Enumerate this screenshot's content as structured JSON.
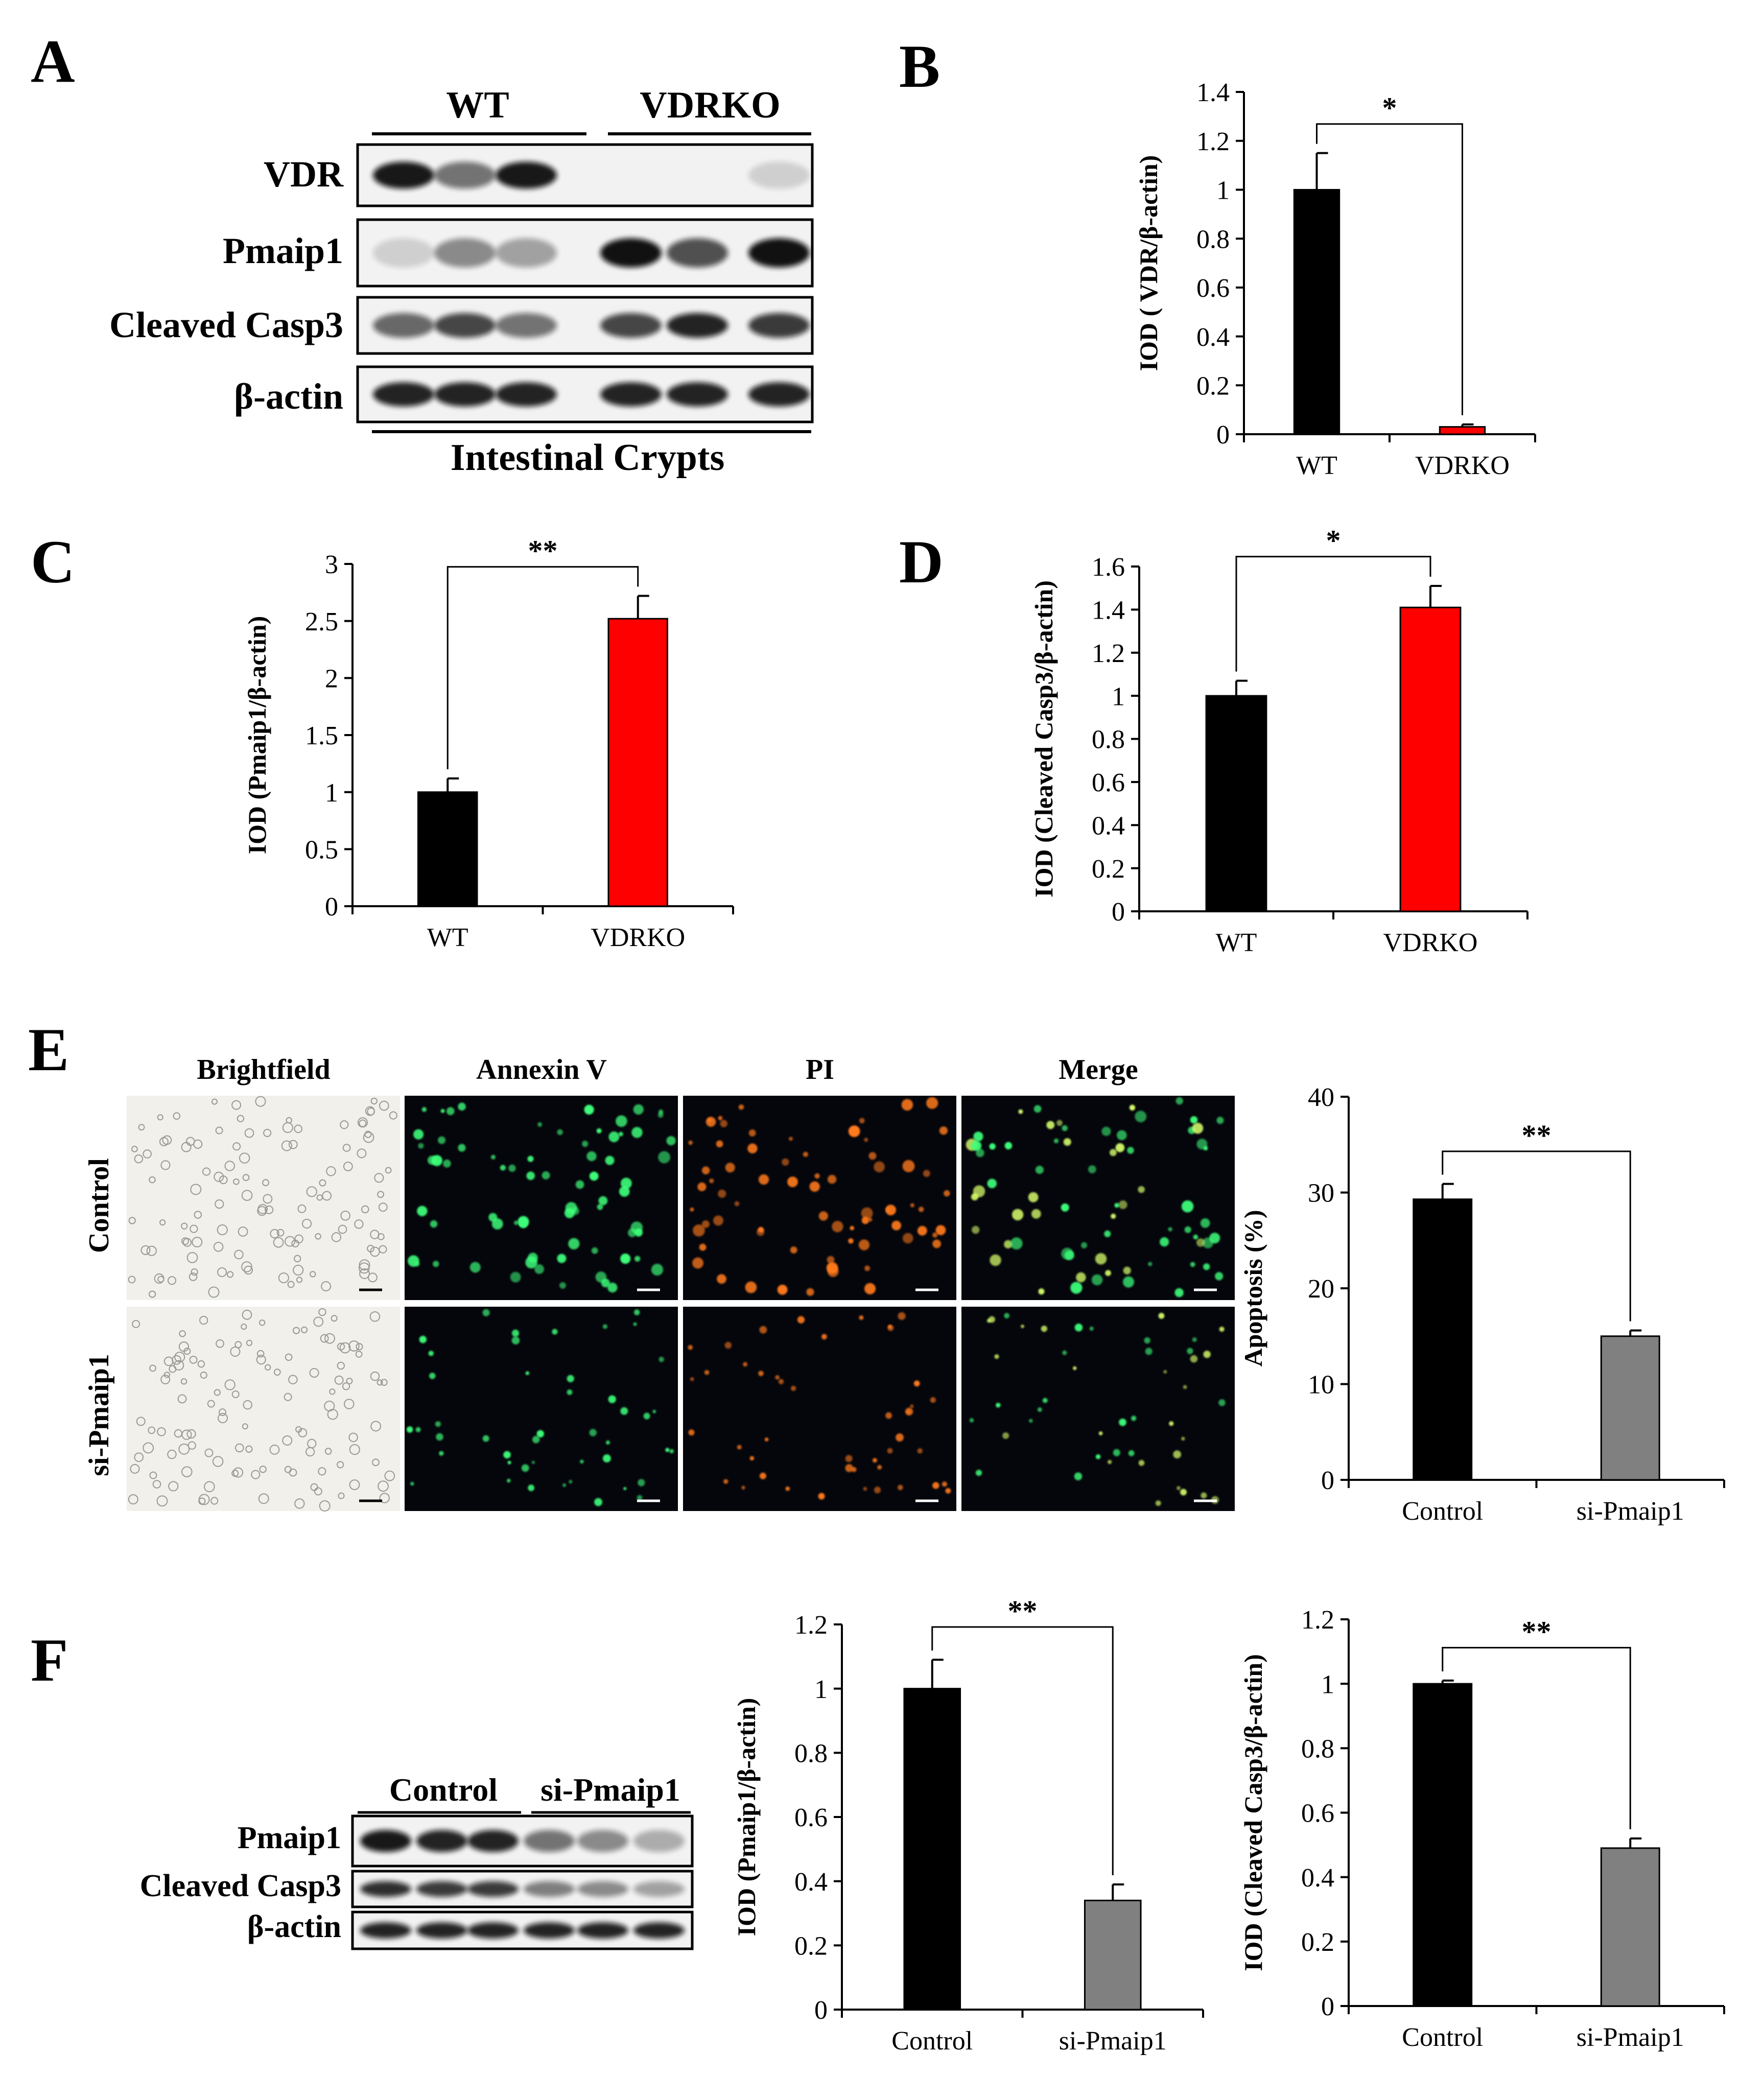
{
  "panels": {
    "A": {
      "letter": "A",
      "groups": [
        "WT",
        "VDRKO"
      ],
      "rows": [
        "VDR",
        "Pmaip1",
        "Cleaved Casp3",
        "β-actin"
      ],
      "footer": "Intestinal Crypts"
    },
    "E": {
      "letter": "E",
      "columns": [
        "Brightfield",
        "Annexin V",
        "PI",
        "Merge"
      ],
      "rows": [
        "Control",
        "si-Pmaip1"
      ]
    },
    "F": {
      "letter": "F",
      "groups": [
        "Control",
        "si-Pmaip1"
      ],
      "rows": [
        "Pmaip1",
        "Cleaved Casp3",
        "β-actin"
      ]
    }
  },
  "colors": {
    "wt": "#000000",
    "ko": "#ff0000",
    "si": "#808080",
    "annexin": "#3cff7a",
    "pi": "#ff7a1a"
  },
  "chart_data": [
    {
      "id": "B",
      "letter": "B",
      "type": "bar",
      "categories": [
        "WT",
        "VDRKO"
      ],
      "values": [
        1.0,
        0.03
      ],
      "errors": [
        0.15,
        0.01
      ],
      "colors": [
        "#000000",
        "#ff0000"
      ],
      "ylabel": "IOD ( VDR/β-actin)",
      "ylim": [
        0,
        1.4
      ],
      "ystep": 0.2,
      "yticks": [
        "0",
        "0.2",
        "0.4",
        "0.6",
        "0.8",
        "1",
        "1.2",
        "1.4"
      ],
      "significance": "*"
    },
    {
      "id": "C",
      "letter": "C",
      "type": "bar",
      "categories": [
        "WT",
        "VDRKO"
      ],
      "values": [
        1.0,
        2.52
      ],
      "errors": [
        0.12,
        0.2
      ],
      "colors": [
        "#000000",
        "#ff0000"
      ],
      "ylabel": "IOD (Pmaip1/β-actin)",
      "ylim": [
        0,
        3
      ],
      "ystep": 0.5,
      "yticks": [
        "0",
        "0.5",
        "1",
        "1.5",
        "2",
        "2.5",
        "3"
      ],
      "significance": "**"
    },
    {
      "id": "D",
      "letter": "D",
      "type": "bar",
      "categories": [
        "WT",
        "VDRKO"
      ],
      "values": [
        1.0,
        1.41
      ],
      "errors": [
        0.07,
        0.1
      ],
      "colors": [
        "#000000",
        "#ff0000"
      ],
      "ylabel": "IOD (Cleaved Casp3/β-actin)",
      "ylim": [
        0,
        1.6
      ],
      "ystep": 0.2,
      "yticks": [
        "0",
        "0.2",
        "0.4",
        "0.6",
        "0.8",
        "1",
        "1.2",
        "1.4",
        "1.6"
      ],
      "significance": "*"
    },
    {
      "id": "E",
      "type": "bar",
      "categories": [
        "Control",
        "si-Pmaip1"
      ],
      "values": [
        29.3,
        15.0
      ],
      "errors": [
        1.6,
        0.6
      ],
      "colors": [
        "#000000",
        "#808080"
      ],
      "ylabel": "Apoptosis (%)",
      "ylim": [
        0,
        40
      ],
      "ystep": 10,
      "yticks": [
        "0",
        "10",
        "20",
        "30",
        "40"
      ],
      "significance": "**"
    },
    {
      "id": "F1",
      "type": "bar",
      "categories": [
        "Control",
        "si-Pmaip1"
      ],
      "values": [
        1.0,
        0.34
      ],
      "errors": [
        0.09,
        0.05
      ],
      "colors": [
        "#000000",
        "#808080"
      ],
      "ylabel": "IOD (Pmaip1/β-actin)",
      "ylim": [
        0,
        1.2
      ],
      "ystep": 0.2,
      "yticks": [
        "0",
        "0.2",
        "0.4",
        "0.6",
        "0.8",
        "1",
        "1.2"
      ],
      "significance": "**"
    },
    {
      "id": "F2",
      "type": "bar",
      "categories": [
        "Control",
        "si-Pmaip1"
      ],
      "values": [
        1.0,
        0.49
      ],
      "errors": [
        0.01,
        0.03
      ],
      "colors": [
        "#000000",
        "#808080"
      ],
      "ylabel": "IOD (Cleaved Casp3/β-actin)",
      "ylim": [
        0,
        1.2
      ],
      "ystep": 0.2,
      "yticks": [
        "0",
        "0.2",
        "0.4",
        "0.6",
        "0.8",
        "1",
        "1.2"
      ],
      "significance": "**"
    }
  ]
}
